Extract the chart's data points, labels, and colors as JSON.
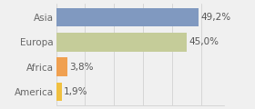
{
  "categories": [
    "America",
    "Africa",
    "Europa",
    "Asia"
  ],
  "values": [
    1.9,
    3.8,
    45.0,
    49.2
  ],
  "bar_colors": [
    "#f0c040",
    "#f0a050",
    "#c5cc99",
    "#8099c0"
  ],
  "labels": [
    "1,9%",
    "3,8%",
    "45,0%",
    "49,2%"
  ],
  "xlim": [
    0,
    58
  ],
  "background_color": "#f0f0f0",
  "label_fontsize": 7.5,
  "tick_fontsize": 7.5,
  "bar_height": 0.75
}
